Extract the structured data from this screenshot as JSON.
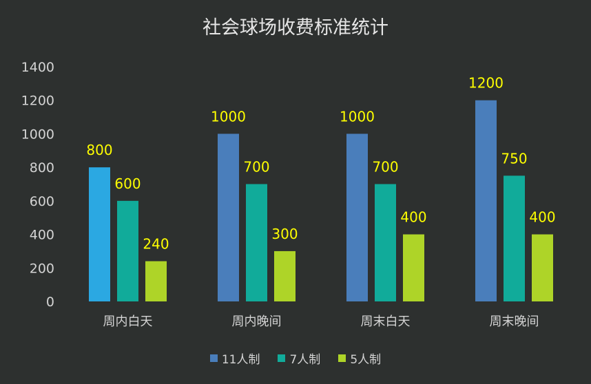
{
  "chart_data": {
    "type": "bar",
    "title": "社会球场收费标准统计",
    "categories": [
      "周内白天",
      "周内晚间",
      "周末白天",
      "周末晚间"
    ],
    "series": [
      {
        "name": "11人制",
        "values": [
          800,
          1000,
          1000,
          1200
        ],
        "color": "#4a7ebb"
      },
      {
        "name": "7人制",
        "values": [
          600,
          700,
          700,
          750
        ],
        "color": "#11ab9a"
      },
      {
        "name": "5人制",
        "values": [
          240,
          300,
          400,
          400
        ],
        "color": "#aed428"
      }
    ],
    "highlight": {
      "series": 0,
      "category": 0,
      "color": "#2ba8e2"
    },
    "ylim": [
      0,
      1400
    ],
    "yticks": [
      "0",
      "200",
      "400",
      "600",
      "800",
      "1000",
      "1200",
      "1400"
    ],
    "label_color": "#ffff00",
    "grid": false,
    "legend_position": "bottom"
  }
}
